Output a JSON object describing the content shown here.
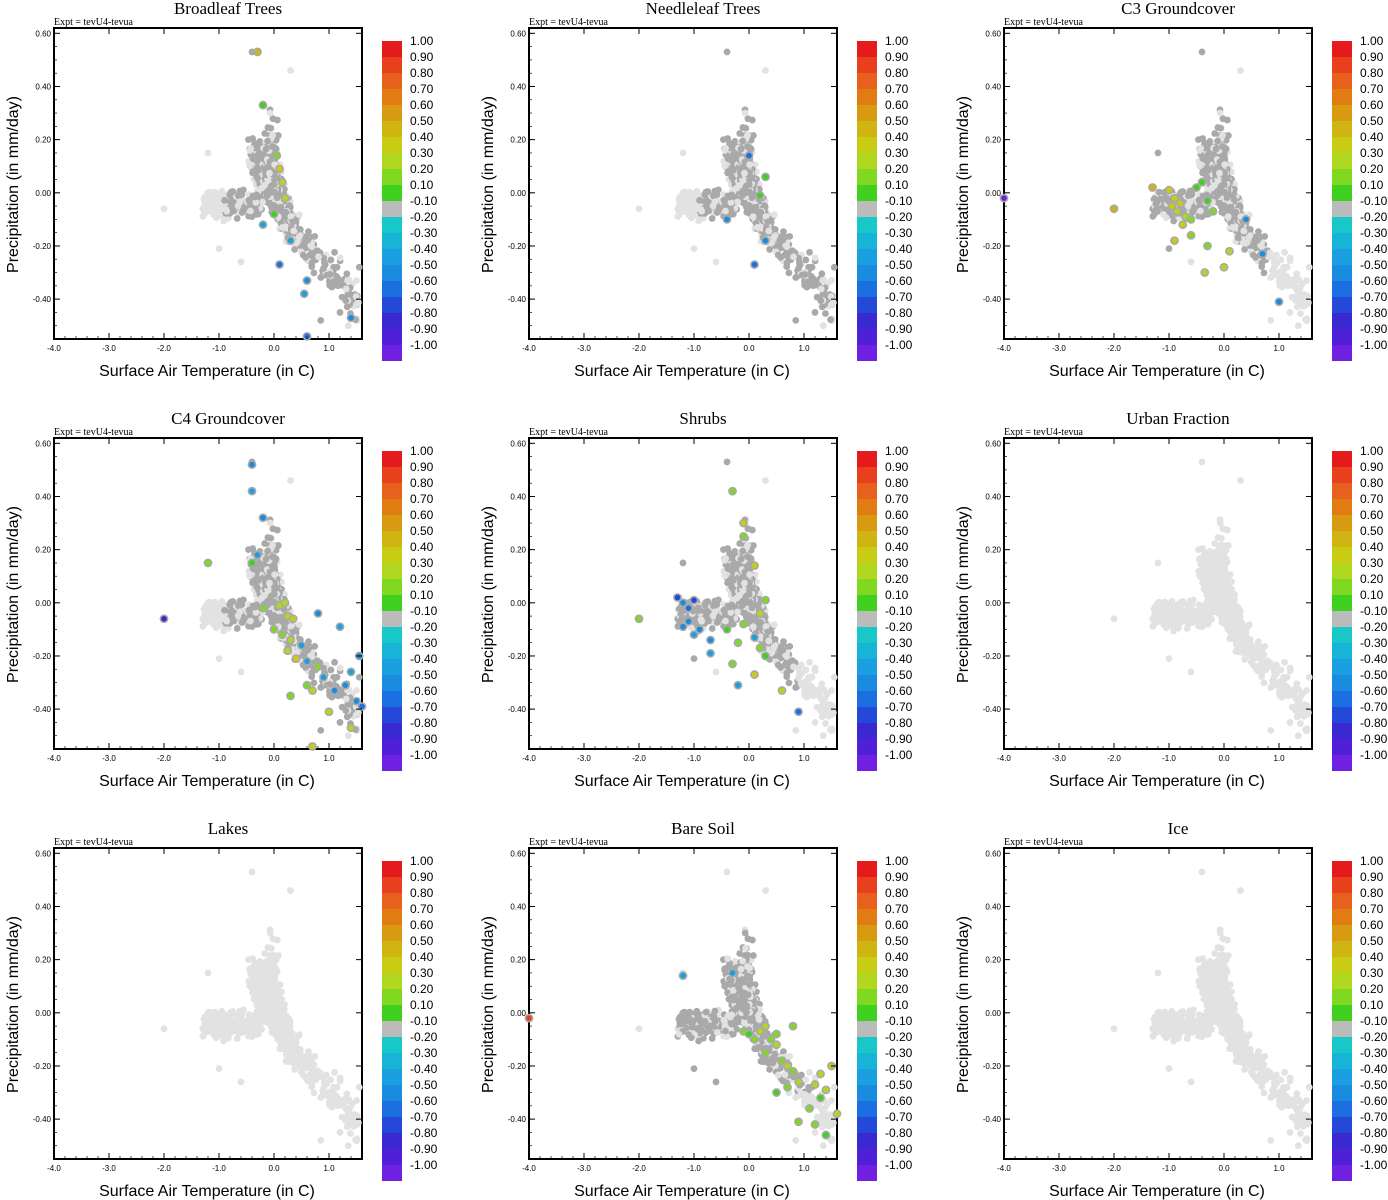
{
  "figure": {
    "expt_label": "Expt = tevU4-tevua",
    "xlabel": "Surface Air Temperature (in C)",
    "ylabel": "Precipitation (in mm/day)",
    "xticks": [
      "-4.0",
      "-3.0",
      "-2.0",
      "-1.0",
      "0.0",
      "1.0"
    ],
    "yticks": [
      "0.60",
      "0.40",
      "0.20",
      "0.00",
      "-0.20",
      "-0.40"
    ],
    "colorbar": {
      "labels": [
        "1.00",
        "0.90",
        "0.80",
        "0.70",
        "0.60",
        "0.50",
        "0.40",
        "0.30",
        "0.20",
        "0.10",
        "-0.10",
        "-0.20",
        "-0.30",
        "-0.40",
        "-0.50",
        "-0.60",
        "-0.70",
        "-0.80",
        "-0.90",
        "-1.00"
      ],
      "colors": [
        "#e41a1c",
        "#e8401c",
        "#e8601e",
        "#e07c12",
        "#d89a10",
        "#d0b412",
        "#c8cc12",
        "#b0d820",
        "#80d820",
        "#40d020",
        "#bbbbbb",
        "#18c8c8",
        "#18b4d8",
        "#1aa0e0",
        "#1a8ce0",
        "#1c6fe0",
        "#2448d8",
        "#3a28d0",
        "#5020d8",
        "#7020e0"
      ]
    },
    "colors": {
      "background_points": "#e2e2e2",
      "sensitive_points": "#a9a9a9"
    }
  },
  "chart_data": [
    {
      "type": "scatter",
      "title": "Broadleaf Trees",
      "xlim": [
        -4.0,
        1.6
      ],
      "ylim": [
        -0.55,
        0.62
      ],
      "colored": [
        [
          -0.3,
          0.53,
          0.5
        ],
        [
          -0.2,
          0.33,
          0.15
        ],
        [
          0.05,
          0.14,
          0.2
        ],
        [
          0.1,
          0.09,
          0.45
        ],
        [
          0.15,
          0.04,
          0.35
        ],
        [
          0.2,
          -0.02,
          0.3
        ],
        [
          0.0,
          -0.08,
          0.15
        ],
        [
          -0.2,
          -0.12,
          -0.3
        ],
        [
          0.3,
          -0.18,
          -0.25
        ],
        [
          0.1,
          -0.27,
          -0.5
        ],
        [
          0.6,
          -0.33,
          -0.35
        ],
        [
          0.55,
          -0.38,
          -0.3
        ],
        [
          0.6,
          -0.54,
          -0.5
        ],
        [
          1.4,
          -0.47,
          -0.35
        ]
      ]
    },
    {
      "type": "scatter",
      "title": "Needleleaf Trees",
      "xlim": [
        -4.0,
        1.6
      ],
      "ylim": [
        -0.55,
        0.62
      ],
      "colored": [
        [
          0.0,
          0.14,
          -0.5
        ],
        [
          0.3,
          0.06,
          0.15
        ],
        [
          0.2,
          -0.01,
          0.15
        ],
        [
          -0.4,
          -0.1,
          -0.4
        ],
        [
          0.3,
          -0.18,
          -0.35
        ],
        [
          0.1,
          -0.27,
          -0.5
        ]
      ]
    },
    {
      "type": "scatter",
      "title": "C3 Groundcover",
      "xlim": [
        -4.0,
        1.6
      ],
      "ylim": [
        -0.55,
        0.62
      ],
      "colored": [
        [
          -4.0,
          -0.02,
          -0.9
        ],
        [
          -2.0,
          -0.06,
          0.55
        ],
        [
          -1.3,
          0.02,
          0.55
        ],
        [
          -1.0,
          0.01,
          0.45
        ],
        [
          -0.9,
          -0.02,
          0.45
        ],
        [
          -0.95,
          -0.05,
          0.4
        ],
        [
          -0.85,
          -0.07,
          0.35
        ],
        [
          -0.8,
          -0.04,
          0.45
        ],
        [
          -0.7,
          -0.09,
          0.35
        ],
        [
          -0.75,
          -0.12,
          0.4
        ],
        [
          -0.6,
          -0.1,
          0.2
        ],
        [
          -0.5,
          0.02,
          0.15
        ],
        [
          -0.4,
          0.04,
          0.15
        ],
        [
          -0.3,
          -0.03,
          0.15
        ],
        [
          -0.2,
          -0.07,
          0.2
        ],
        [
          -0.6,
          -0.16,
          0.25
        ],
        [
          -0.9,
          -0.18,
          0.4
        ],
        [
          -0.3,
          -0.2,
          0.2
        ],
        [
          0.1,
          -0.22,
          0.3
        ],
        [
          0.0,
          -0.28,
          0.35
        ],
        [
          -0.35,
          -0.3,
          0.3
        ],
        [
          0.4,
          -0.1,
          -0.35
        ],
        [
          0.7,
          -0.23,
          -0.35
        ],
        [
          1.0,
          -0.41,
          -0.35
        ]
      ]
    },
    {
      "type": "scatter",
      "title": "C4 Groundcover",
      "xlim": [
        -4.0,
        1.6
      ],
      "ylim": [
        -0.55,
        0.62
      ],
      "colored": [
        [
          -0.4,
          0.52,
          -0.4
        ],
        [
          -0.4,
          0.42,
          -0.3
        ],
        [
          -0.2,
          0.32,
          -0.4
        ],
        [
          -0.3,
          0.18,
          -0.3
        ],
        [
          -1.2,
          0.15,
          0.2
        ],
        [
          -0.4,
          0.15,
          0.15
        ],
        [
          -2.0,
          -0.06,
          -0.7
        ],
        [
          -0.2,
          -0.02,
          0.2
        ],
        [
          0.1,
          -0.01,
          0.3
        ],
        [
          0.2,
          0.0,
          0.35
        ],
        [
          0.25,
          -0.05,
          0.3
        ],
        [
          0.35,
          -0.06,
          0.4
        ],
        [
          0.0,
          -0.1,
          0.25
        ],
        [
          0.15,
          -0.12,
          0.2
        ],
        [
          0.3,
          -0.14,
          0.35
        ],
        [
          0.25,
          -0.18,
          0.3
        ],
        [
          0.4,
          -0.21,
          0.4
        ],
        [
          0.5,
          -0.16,
          -0.3
        ],
        [
          0.6,
          -0.22,
          -0.3
        ],
        [
          0.8,
          -0.24,
          0.25
        ],
        [
          0.9,
          -0.28,
          -0.3
        ],
        [
          0.6,
          -0.31,
          0.2
        ],
        [
          0.7,
          -0.33,
          0.3
        ],
        [
          0.3,
          -0.35,
          0.2
        ],
        [
          1.1,
          -0.33,
          -0.4
        ],
        [
          1.3,
          -0.31,
          -0.35
        ],
        [
          1.4,
          -0.26,
          -0.3
        ],
        [
          1.55,
          -0.2,
          -0.35
        ],
        [
          1.2,
          -0.09,
          -0.3
        ],
        [
          0.8,
          -0.04,
          -0.4
        ],
        [
          1.0,
          -0.41,
          0.35
        ],
        [
          1.5,
          -0.37,
          -0.4
        ],
        [
          1.4,
          -0.47,
          0.35
        ],
        [
          0.7,
          -0.54,
          0.4
        ],
        [
          1.6,
          -0.39,
          -0.5
        ]
      ]
    },
    {
      "type": "scatter",
      "title": "Shrubs",
      "xlim": [
        -4.0,
        1.6
      ],
      "ylim": [
        -0.55,
        0.62
      ],
      "colored": [
        [
          -2.0,
          -0.06,
          0.2
        ],
        [
          -1.3,
          0.02,
          -0.6
        ],
        [
          -1.2,
          0.0,
          -0.4
        ],
        [
          -1.1,
          -0.02,
          -0.5
        ],
        [
          -1.0,
          0.01,
          -0.6
        ],
        [
          -1.1,
          -0.07,
          -0.4
        ],
        [
          -1.2,
          -0.09,
          -0.4
        ],
        [
          -1.0,
          -0.12,
          -0.3
        ],
        [
          -0.9,
          -0.1,
          -0.35
        ],
        [
          -0.7,
          -0.14,
          -0.4
        ],
        [
          -0.7,
          -0.19,
          -0.3
        ],
        [
          -0.3,
          -0.23,
          0.2
        ],
        [
          -0.4,
          -0.1,
          0.15
        ],
        [
          -0.2,
          -0.15,
          0.2
        ],
        [
          -0.1,
          -0.08,
          0.2
        ],
        [
          0.2,
          -0.04,
          0.3
        ],
        [
          0.3,
          0.01,
          0.2
        ],
        [
          0.1,
          0.14,
          0.4
        ],
        [
          -0.1,
          0.3,
          0.45
        ],
        [
          -0.3,
          0.42,
          0.2
        ],
        [
          -0.1,
          0.25,
          0.2
        ],
        [
          0.1,
          -0.13,
          -0.3
        ],
        [
          0.2,
          -0.17,
          0.2
        ],
        [
          0.3,
          -0.2,
          0.15
        ],
        [
          0.6,
          -0.33,
          0.3
        ],
        [
          0.9,
          -0.41,
          -0.5
        ],
        [
          0.1,
          -0.27,
          0.4
        ],
        [
          -0.2,
          -0.31,
          -0.3
        ]
      ]
    },
    {
      "type": "scatter",
      "title": "Urban Fraction",
      "xlim": [
        -4.0,
        1.6
      ],
      "ylim": [
        -0.55,
        0.62
      ],
      "colored": []
    },
    {
      "type": "scatter",
      "title": "Lakes",
      "xlim": [
        -4.0,
        1.6
      ],
      "ylim": [
        -0.55,
        0.62
      ],
      "colored": []
    },
    {
      "type": "scatter",
      "title": "Bare Soil",
      "xlim": [
        -4.0,
        1.6
      ],
      "ylim": [
        -0.55,
        0.62
      ],
      "colored": [
        [
          -4.0,
          -0.02,
          0.95
        ],
        [
          -1.2,
          0.14,
          -0.3
        ],
        [
          -0.3,
          0.15,
          -0.3
        ],
        [
          -0.1,
          -0.07,
          0.2
        ],
        [
          0.0,
          -0.08,
          0.15
        ],
        [
          0.1,
          -0.1,
          0.2
        ],
        [
          0.2,
          -0.07,
          0.3
        ],
        [
          0.3,
          -0.05,
          0.35
        ],
        [
          0.4,
          -0.1,
          0.2
        ],
        [
          0.5,
          -0.12,
          0.3
        ],
        [
          0.3,
          -0.15,
          0.2
        ],
        [
          0.6,
          -0.18,
          0.25
        ],
        [
          0.7,
          -0.2,
          0.3
        ],
        [
          0.8,
          -0.22,
          0.2
        ],
        [
          0.8,
          -0.05,
          0.25
        ],
        [
          0.5,
          -0.08,
          0.2
        ],
        [
          0.9,
          -0.26,
          0.3
        ],
        [
          0.7,
          -0.28,
          0.2
        ],
        [
          0.5,
          -0.3,
          0.15
        ],
        [
          1.2,
          -0.27,
          0.3
        ],
        [
          1.3,
          -0.23,
          0.35
        ],
        [
          1.4,
          -0.29,
          0.3
        ],
        [
          1.5,
          -0.2,
          0.45
        ],
        [
          1.3,
          -0.32,
          0.15
        ],
        [
          1.1,
          -0.36,
          0.2
        ],
        [
          0.9,
          -0.41,
          0.25
        ],
        [
          1.2,
          -0.42,
          0.2
        ],
        [
          1.4,
          -0.46,
          0.15
        ],
        [
          1.6,
          -0.38,
          0.35
        ]
      ]
    },
    {
      "type": "scatter",
      "title": "Ice",
      "xlim": [
        -4.0,
        1.6
      ],
      "ylim": [
        -0.55,
        0.62
      ],
      "colored": []
    }
  ]
}
